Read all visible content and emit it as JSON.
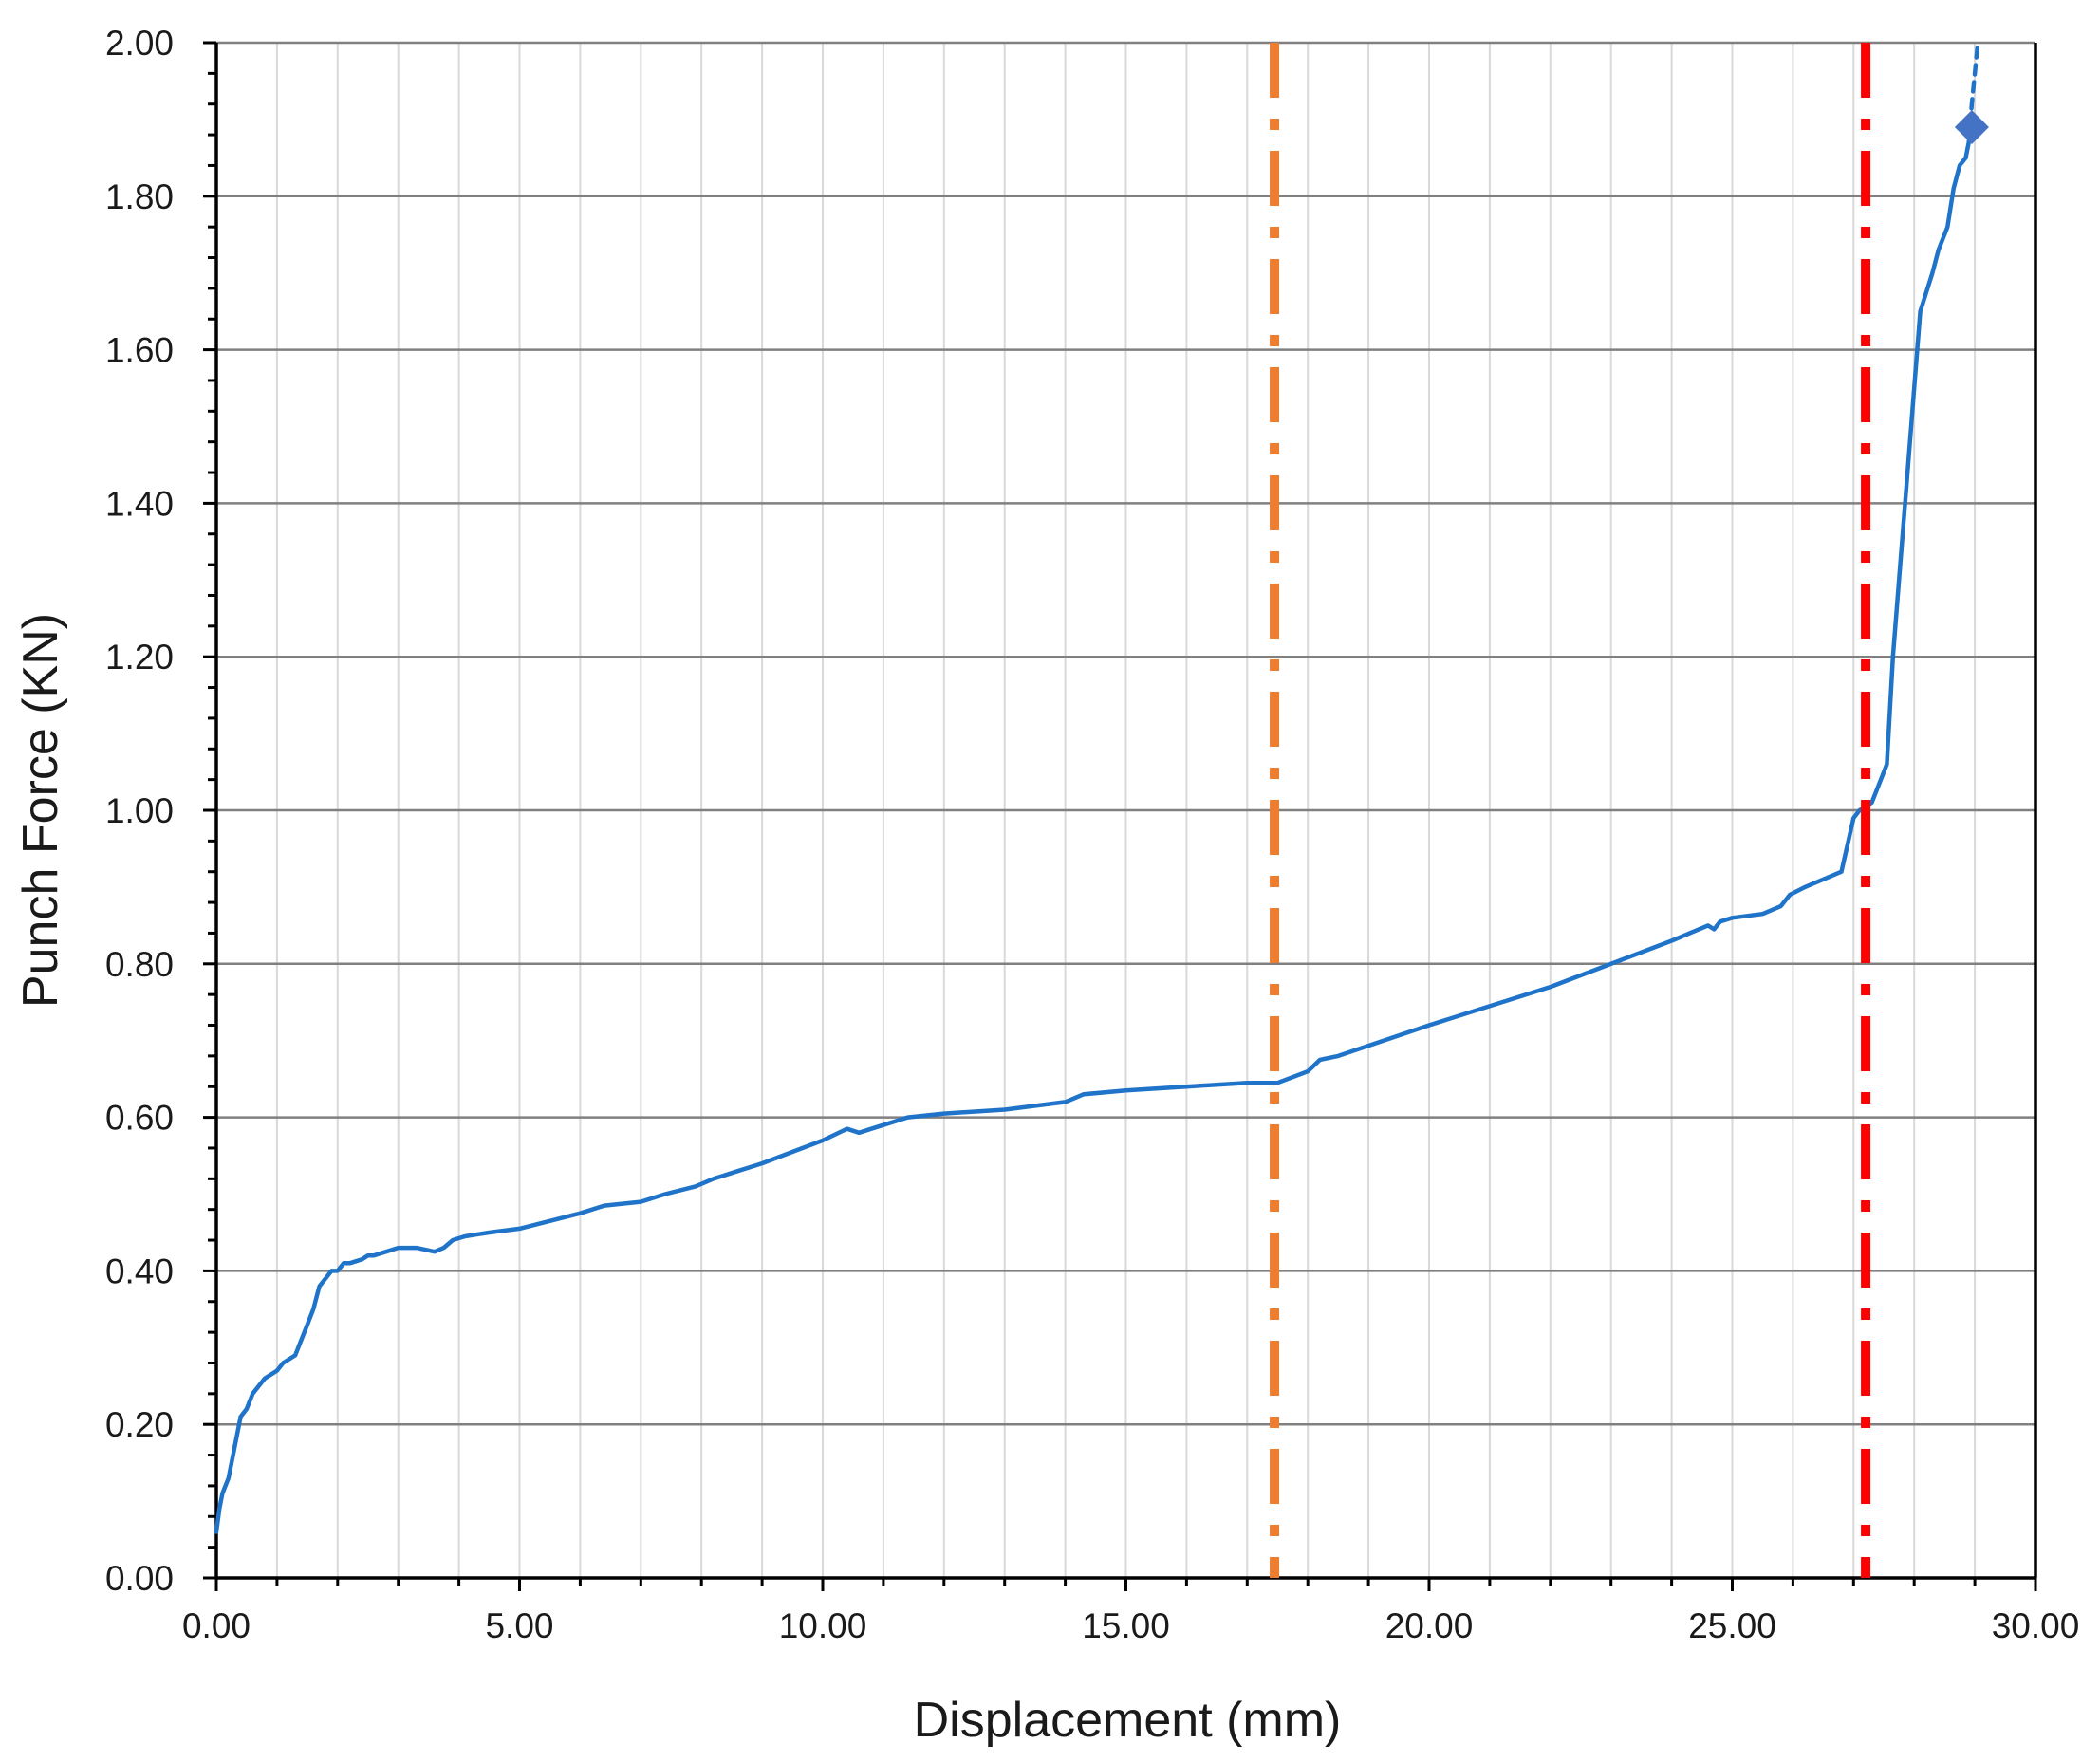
{
  "chart_data": {
    "type": "line",
    "title": "",
    "xlabel": "Displacement (mm)",
    "ylabel": "Punch Force (KN)",
    "xlim": [
      0,
      30
    ],
    "ylim": [
      0,
      2
    ],
    "x_major_step": 5,
    "x_minor_step": 1,
    "y_major_step": 0.2,
    "y_minor_step": 0.04,
    "x_tick_labels": [
      "0.00",
      "5.00",
      "10.00",
      "15.00",
      "20.00",
      "25.00",
      "30.00"
    ],
    "y_tick_labels": [
      "0.00",
      "0.20",
      "0.40",
      "0.60",
      "0.80",
      "1.00",
      "1.20",
      "1.40",
      "1.60",
      "1.80",
      "2.00"
    ],
    "grid": {
      "horizontal_major": true,
      "vertical_minor": true
    },
    "legend": "none",
    "colors": {
      "series": "#1f73c8",
      "orange_line": "#ed7d31",
      "red_line": "#ff0000",
      "marker": "#4472c4",
      "major_grid": "#808080",
      "minor_grid": "#d9d9d9",
      "axis": "#000000"
    },
    "series": [
      {
        "x": [
          0.0,
          0.05,
          0.1,
          0.2,
          0.3,
          0.4,
          0.5,
          0.6,
          0.8,
          1.0,
          1.1,
          1.3,
          1.5,
          1.6,
          1.7,
          1.8,
          1.9,
          2.0,
          2.1,
          2.2,
          2.4,
          2.5,
          2.6,
          2.8,
          3.0,
          3.3,
          3.6,
          3.75,
          3.9,
          4.1,
          4.5,
          5.0,
          5.5,
          6.0,
          6.4,
          7.0,
          7.4,
          7.9,
          8.2,
          8.6,
          9.0,
          9.5,
          10.0,
          10.4,
          10.6,
          10.8,
          11.0,
          11.4,
          12.0,
          13.0,
          14.0,
          14.3,
          15.0,
          16.0,
          17.0,
          17.5,
          18.0,
          18.2,
          18.5,
          20.0,
          22.0,
          24.0,
          24.6,
          24.7,
          24.8,
          25.0,
          25.5,
          25.8,
          25.95,
          26.2,
          26.5,
          26.8,
          27.0,
          27.1,
          27.3,
          27.45,
          27.55,
          27.65,
          27.75,
          27.9,
          28.0,
          28.1,
          28.3,
          28.4,
          28.55,
          28.65,
          28.75,
          28.85,
          28.9
        ],
        "y": [
          0.06,
          0.09,
          0.11,
          0.13,
          0.17,
          0.21,
          0.22,
          0.24,
          0.26,
          0.27,
          0.28,
          0.29,
          0.33,
          0.35,
          0.38,
          0.39,
          0.4,
          0.4,
          0.41,
          0.41,
          0.415,
          0.42,
          0.42,
          0.425,
          0.43,
          0.43,
          0.425,
          0.43,
          0.44,
          0.445,
          0.45,
          0.455,
          0.465,
          0.475,
          0.485,
          0.49,
          0.5,
          0.51,
          0.52,
          0.53,
          0.54,
          0.555,
          0.57,
          0.585,
          0.58,
          0.585,
          0.59,
          0.6,
          0.605,
          0.61,
          0.62,
          0.63,
          0.635,
          0.64,
          0.645,
          0.645,
          0.66,
          0.675,
          0.68,
          0.72,
          0.77,
          0.83,
          0.85,
          0.845,
          0.855,
          0.86,
          0.865,
          0.875,
          0.89,
          0.9,
          0.91,
          0.92,
          0.99,
          1.0,
          1.01,
          1.04,
          1.06,
          1.2,
          1.3,
          1.45,
          1.55,
          1.65,
          1.7,
          1.73,
          1.76,
          1.81,
          1.84,
          1.85,
          1.87
        ],
        "style": "solid"
      },
      {
        "x": [
          28.9,
          28.95,
          29.05
        ],
        "y": [
          1.87,
          1.92,
          2.0
        ],
        "style": "dashed"
      }
    ],
    "vertical_lines": [
      {
        "x": 17.45,
        "color": "#ed7d31",
        "style": "dash-dot"
      },
      {
        "x": 27.2,
        "color": "#ff0000",
        "style": "dash-dot"
      }
    ],
    "marker_point": {
      "x": 28.95,
      "y": 1.89,
      "shape": "diamond",
      "color": "#4472c4"
    }
  }
}
